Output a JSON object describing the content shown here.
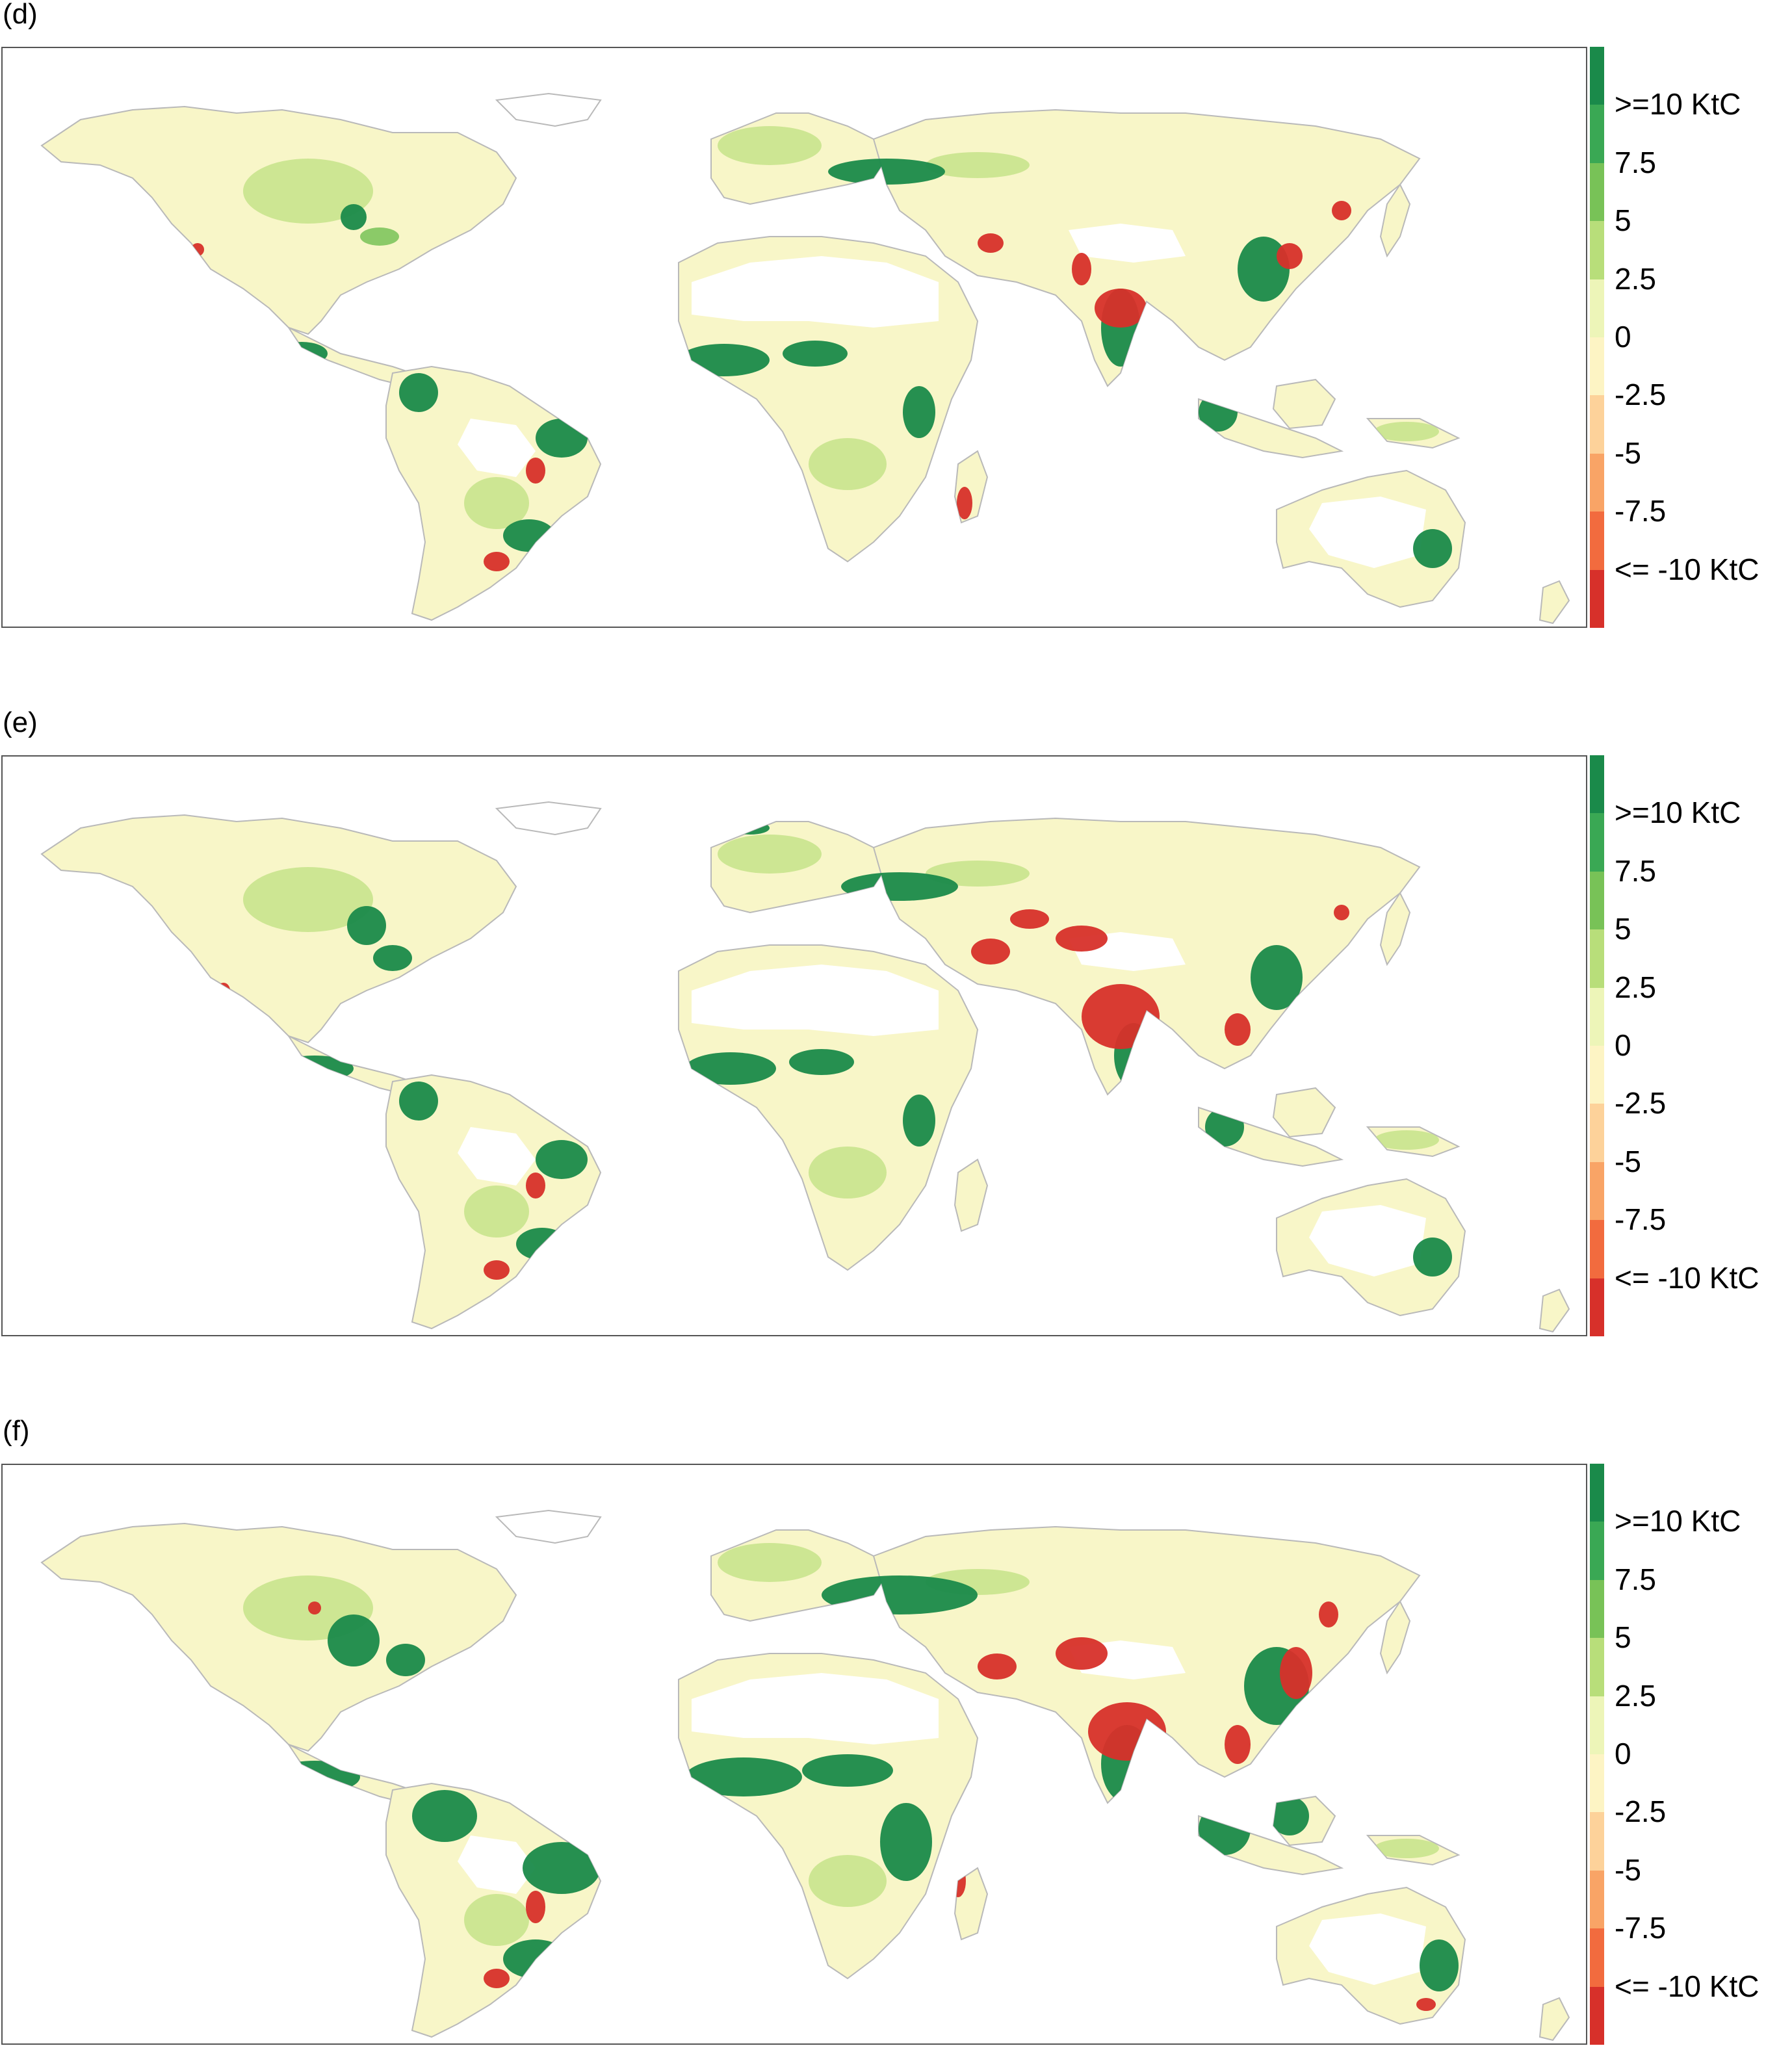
{
  "panels": [
    {
      "label": "(d)",
      "variant": 0
    },
    {
      "label": "(e)",
      "variant": 1
    },
    {
      "label": "(f)",
      "variant": 2
    }
  ],
  "legend": {
    "labels": [
      ">=10 KtC",
      "7.5",
      "5",
      "2.5",
      "0",
      "-2.5",
      "-5",
      "-7.5",
      "<= -10 KtC"
    ],
    "colors": [
      "#1a8a4a",
      "#3aa854",
      "#78c257",
      "#b8de7a",
      "#edf5b8",
      "#fdf4c4",
      "#fdd29a",
      "#f9a466",
      "#f26b3e",
      "#d7302a"
    ]
  },
  "map_colors": {
    "background": "#ffffff",
    "land_base": "#f8f6c8",
    "coast": "#b9b9b9",
    "desert": "#ffffff",
    "strong_green": "#1a8a4a",
    "mid_green": "#78c257",
    "light_green": "#c6e38a",
    "strong_red": "#d7302a",
    "orange": "#f26b3e"
  }
}
